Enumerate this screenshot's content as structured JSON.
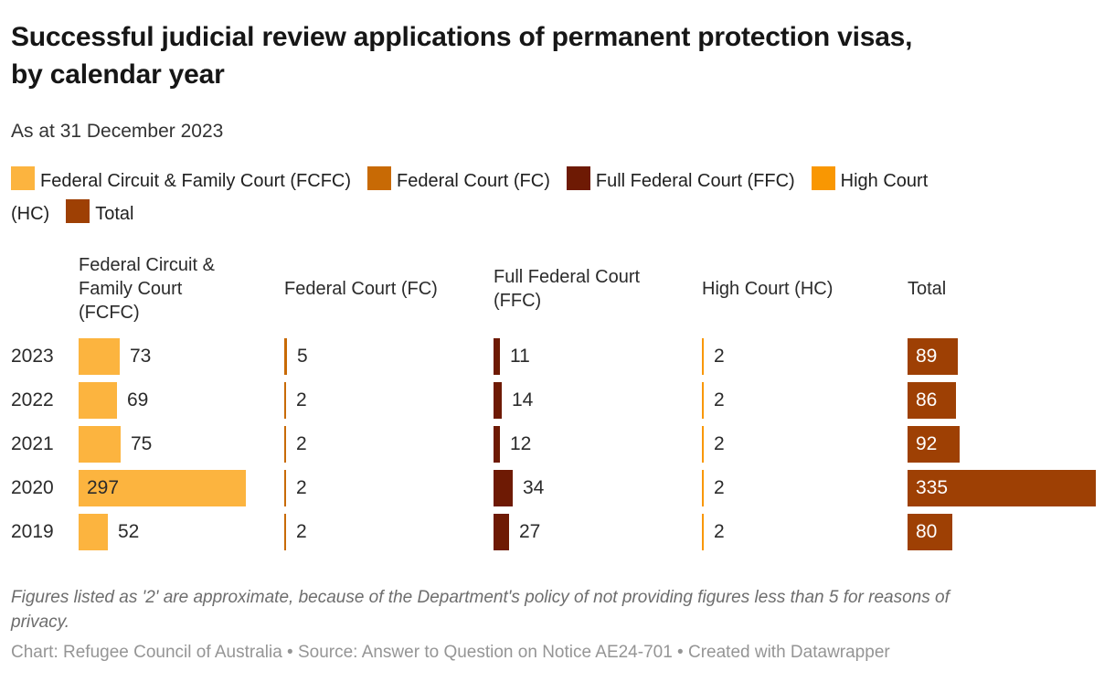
{
  "chart_data": {
    "type": "bar",
    "orientation": "horizontal",
    "layout": "split-bars",
    "title": "Successful judicial review applications of permanent protection visas, by calendar year",
    "subtitle": "As at 31 December 2023",
    "categories": [
      "2023",
      "2022",
      "2021",
      "2020",
      "2019"
    ],
    "series": [
      {
        "name": "Federal Circuit & Family Court (FCFC)",
        "color": "#FCB43F",
        "values": [
          73,
          69,
          75,
          297,
          52
        ]
      },
      {
        "name": "Federal Court (FC)",
        "color": "#C86A05",
        "values": [
          5,
          2,
          2,
          2,
          2
        ]
      },
      {
        "name": "Full Federal Court (FFC)",
        "color": "#6E1A04",
        "values": [
          11,
          14,
          12,
          34,
          27
        ]
      },
      {
        "name": "High Court (HC)",
        "color": "#F99702",
        "values": [
          2,
          2,
          2,
          2,
          2
        ]
      },
      {
        "name": "Total",
        "color": "#9E4004",
        "values": [
          89,
          86,
          92,
          335,
          80
        ]
      }
    ],
    "value_range": [
      0,
      335
    ],
    "grid": false,
    "legend_position": "top",
    "bar_labels": "value shown beside small bars, inside large bars; Total column labels are white inside bars"
  },
  "notes": {
    "footnote": "Figures listed as '2' are approximate, because of the Department's policy of not providing figures less than 5 for reasons of privacy."
  },
  "footer": {
    "byline": "Chart: Refugee Council of Australia • Source: Answer to Question on Notice AE24-701 • Created with Datawrapper"
  }
}
